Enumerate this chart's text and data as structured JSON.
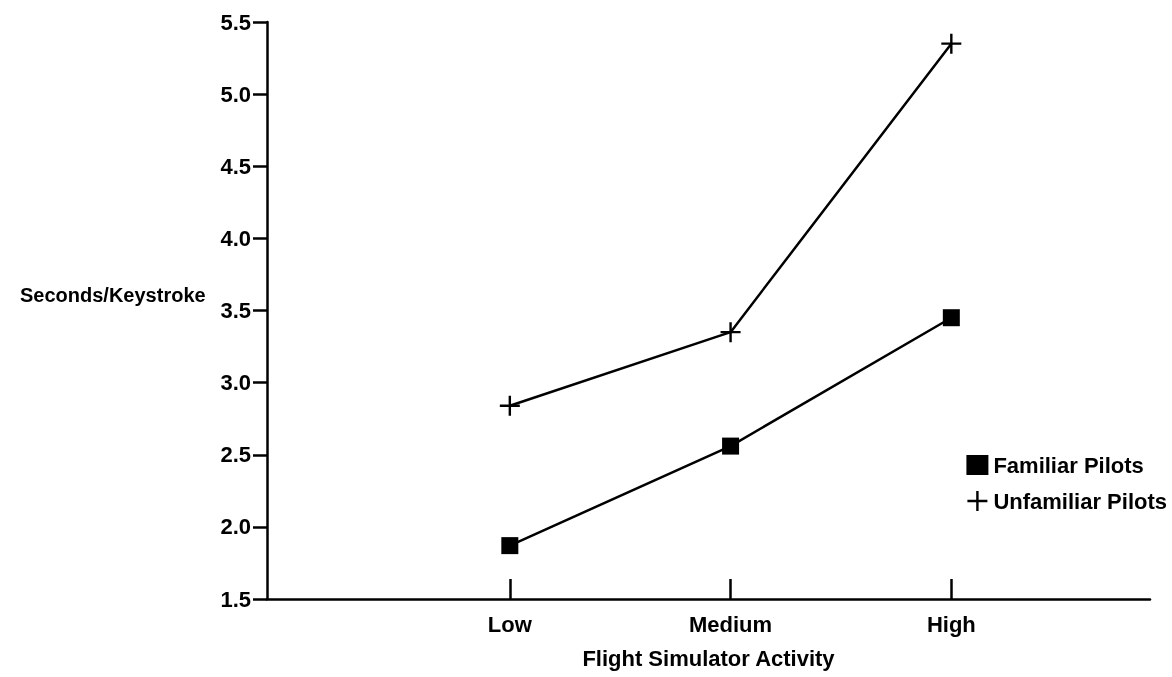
{
  "chart_data": {
    "type": "line",
    "xlabel": "Flight Simulator Activity",
    "ylabel": "Seconds/Keystroke",
    "categories": [
      "Low",
      "Medium",
      "High"
    ],
    "series": [
      {
        "name": "Familiar Pilots",
        "color": "#000000",
        "marker": "square",
        "values": [
          1.87,
          2.56,
          3.45
        ]
      },
      {
        "name": "Unfamiliar Pilots",
        "color": "#000000",
        "marker": "cross",
        "values": [
          2.84,
          3.35,
          5.35
        ]
      }
    ],
    "ylim": [
      1.5,
      5.5
    ],
    "yticks": [
      1.5,
      {
        "value": 2,
        "label": "2.0"
      },
      2.5,
      {
        "value": 3,
        "label": "3.0"
      },
      3.5,
      {
        "value": 4,
        "label": "4.0"
      },
      4.5,
      {
        "value": 5,
        "label": "5.0"
      },
      5.5
    ],
    "grid": false,
    "legend": "bottom right",
    "line_style": "solid"
  }
}
